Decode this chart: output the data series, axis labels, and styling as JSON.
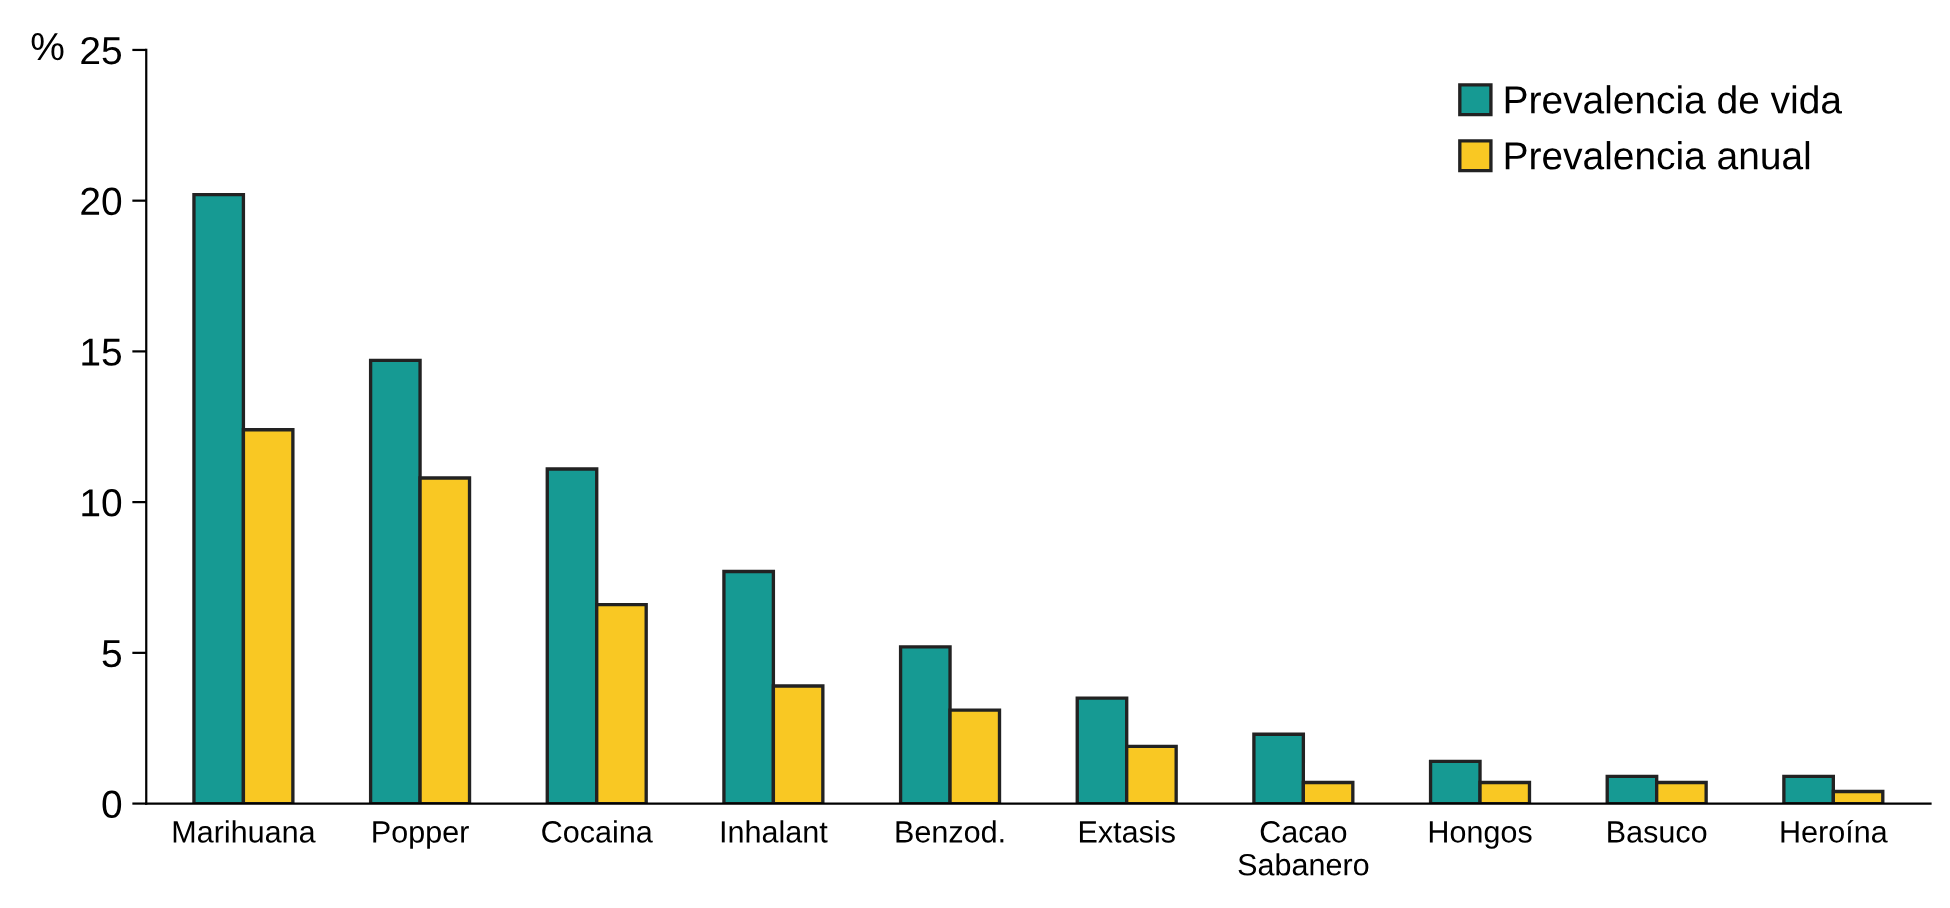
{
  "chart_data": {
    "type": "bar",
    "ylabel": "%",
    "categories": [
      "Marihuana",
      "Popper",
      "Cocaina",
      "Inhalant",
      "Benzod.",
      "Extasis",
      "Cacao\nSabanero",
      "Hongos",
      "Basuco",
      "Heroína"
    ],
    "series": [
      {
        "name": "Prevalencia de vida",
        "color": "#169a93",
        "values": [
          20.2,
          14.7,
          11.1,
          7.7,
          5.2,
          3.5,
          2.3,
          1.4,
          0.9,
          0.9
        ]
      },
      {
        "name": "Prevalencia anual",
        "color": "#f9c823",
        "values": [
          12.4,
          10.8,
          6.6,
          3.9,
          3.1,
          1.9,
          0.7,
          0.7,
          0.7,
          0.4
        ]
      }
    ],
    "ylim": [
      0,
      25
    ],
    "yticks": [
      0,
      5,
      10,
      15,
      20,
      25
    ],
    "grid": false,
    "legend": "top right"
  }
}
